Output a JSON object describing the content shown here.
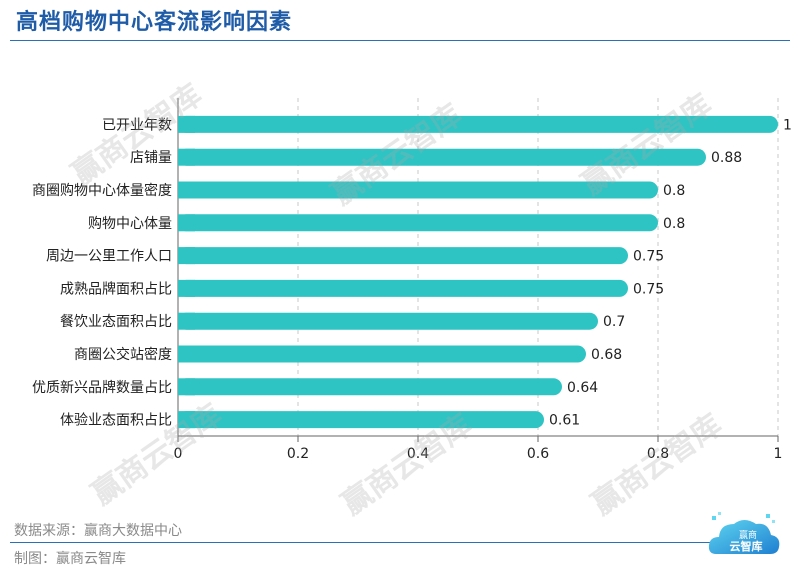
{
  "header": {
    "title": "高档购物中心客流影响因素"
  },
  "chart_data": {
    "type": "bar",
    "orientation": "horizontal",
    "categories": [
      "已开业年数",
      "店铺量",
      "商圈购物中心体量密度",
      "购物中心体量",
      "周边一公里工作人口",
      "成熟品牌面积占比",
      "餐饮业态面积占比",
      "商圈公交站密度",
      "优质新兴品牌数量占比",
      "体验业态面积占比"
    ],
    "values": [
      1,
      0.88,
      0.8,
      0.8,
      0.75,
      0.75,
      0.7,
      0.68,
      0.64,
      0.61
    ],
    "value_labels": [
      "1",
      "0.88",
      "0.8",
      "0.8",
      "0.75",
      "0.75",
      "0.7",
      "0.68",
      "0.64",
      "0.61"
    ],
    "xlim": [
      0,
      1
    ],
    "xticks": [
      0,
      0.2,
      0.4,
      0.6,
      0.8,
      1
    ],
    "xtick_labels": [
      "0",
      "0.2",
      "0.4",
      "0.6",
      "0.8",
      "1"
    ],
    "grid": "vertical dashed",
    "bar_color": "#2ec4c3"
  },
  "watermark": {
    "text": "赢商云智库"
  },
  "footer": {
    "source": "数据来源：赢商大数据中心",
    "made_by": "制图：赢商云智库"
  },
  "logo": {
    "line1": "赢商",
    "line2": "云智库"
  },
  "colors": {
    "title": "#1f5ca8",
    "rule": "#2a6fb8",
    "bar": "#2ec4c3",
    "grid": "#c8c8c8"
  }
}
